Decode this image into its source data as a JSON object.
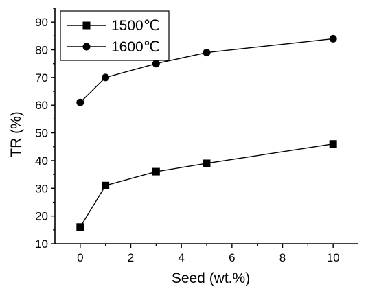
{
  "chart_data": {
    "type": "line",
    "xlabel": "Seed (wt.%)",
    "ylabel": "TR (%)",
    "xlim": [
      -1,
      11
    ],
    "ylim": [
      10,
      95
    ],
    "xticks": [
      0,
      2,
      4,
      6,
      8,
      10
    ],
    "yticks": [
      10,
      20,
      30,
      40,
      50,
      60,
      70,
      80,
      90
    ],
    "grid": false,
    "legend_position": "top-left",
    "series": [
      {
        "name": "1500℃",
        "marker": "square",
        "color": "#000000",
        "x": [
          0,
          1,
          3,
          5,
          10
        ],
        "y": [
          16,
          31,
          36,
          39,
          46
        ]
      },
      {
        "name": "1600℃",
        "marker": "circle",
        "color": "#000000",
        "x": [
          0,
          1,
          3,
          5,
          10
        ],
        "y": [
          61,
          70,
          75,
          79,
          84
        ]
      }
    ]
  }
}
